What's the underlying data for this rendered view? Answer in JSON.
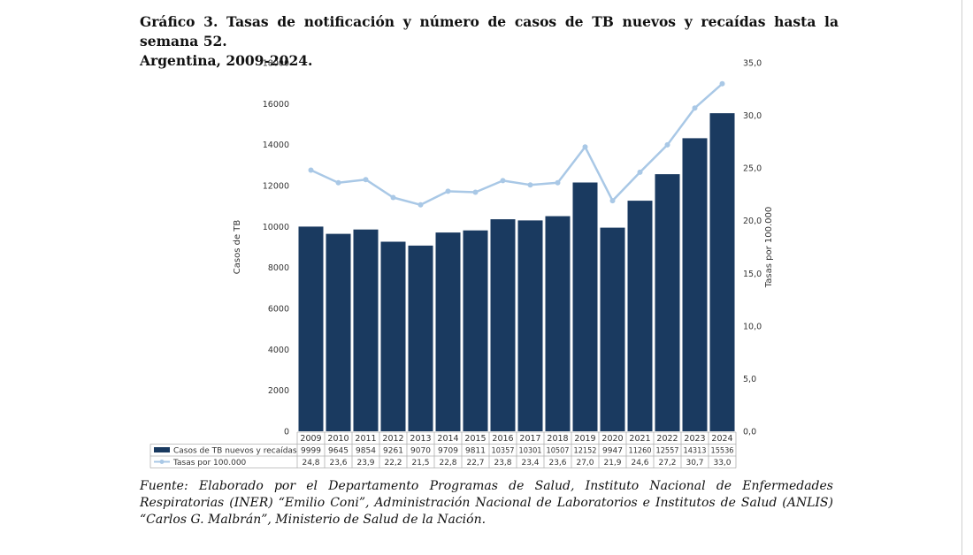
{
  "title": {
    "line1": "Gráfico 3. Tasas de notificación y número de casos de TB nuevos y recaídas hasta la semana 52.",
    "line2": "Argentina, 2009-2024."
  },
  "source": "Fuente: Elaborado por el Departamento Programas de Salud, Instituto Nacional de Enfermedades Respiratorias (INER) “Emilio Coni”, Administración Nacional de Laboratorios e Institutos de Salud (ANLIS) “Carlos G. Malbrán”, Ministerio de Salud de la Nación.",
  "colors": {
    "bars": "#1a3a60",
    "line": "#a9c8e6",
    "axis_text": "#333333",
    "table_border": "#b0b0b0"
  },
  "chart_data": {
    "type": "bar",
    "categories": [
      "2009",
      "2010",
      "2011",
      "2012",
      "2013",
      "2014",
      "2015",
      "2016",
      "2017",
      "2018",
      "2019",
      "2020",
      "2021",
      "2022",
      "2023",
      "2024"
    ],
    "series": [
      {
        "name": "Casos de TB nuevos y recaídas",
        "type": "bar",
        "axis": "left",
        "values": [
          9999,
          9645,
          9854,
          9261,
          9070,
          9709,
          9811,
          10357,
          10301,
          10507,
          12152,
          9947,
          11260,
          12557,
          14313,
          15536
        ],
        "labels": [
          "9999",
          "9645",
          "9854",
          "9261",
          "9070",
          "9709",
          "9811",
          "10357",
          "10301",
          "10507",
          "12152",
          "9947",
          "11260",
          "12557",
          "14313",
          "15536"
        ]
      },
      {
        "name": "Tasas por 100.000",
        "type": "line",
        "axis": "right",
        "values": [
          24.8,
          23.6,
          23.9,
          22.2,
          21.5,
          22.8,
          22.7,
          23.8,
          23.4,
          23.6,
          27.0,
          21.9,
          24.6,
          27.2,
          30.7,
          33.0
        ],
        "labels": [
          "24,8",
          "23,6",
          "23,9",
          "22,2",
          "21,5",
          "22,8",
          "22,7",
          "23,8",
          "23,4",
          "23,6",
          "27,0",
          "21,9",
          "24,6",
          "27,2",
          "30,7",
          "33,0"
        ]
      }
    ],
    "ylabel": "Casos de TB",
    "y2label": "Tasas por 100.000",
    "ylim": [
      0,
      18000
    ],
    "y2lim": [
      0,
      35
    ],
    "yticks": [
      "0",
      "2000",
      "4000",
      "6000",
      "8000",
      "10000",
      "12000",
      "14000",
      "16000",
      "18000"
    ],
    "y2ticks": [
      "0,0",
      "5,0",
      "10,0",
      "15,0",
      "20,0",
      "25,0",
      "30,0",
      "35,0"
    ],
    "grid": false,
    "legend": "data table below the chart"
  }
}
